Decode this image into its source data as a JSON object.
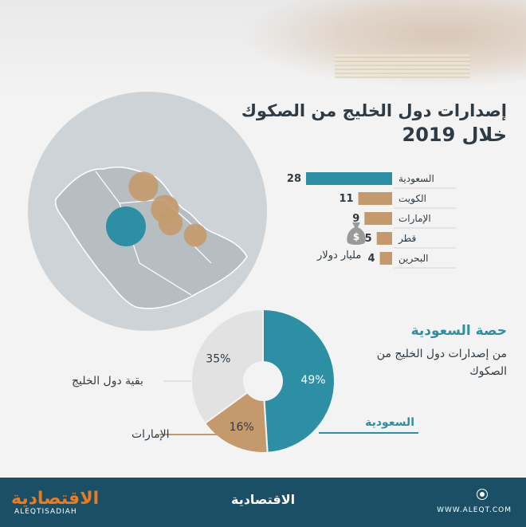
{
  "title_line1": "إصدارات دول الخليج من الصكوك",
  "title_line2": "خلال 2019",
  "unit_label": "مليار دولار",
  "share_title": "حصة السعودية",
  "share_subtitle": "من إصدارات دول الخليج من الصكوك",
  "colors": {
    "teal": "#2c8fa4",
    "tan": "#c49a6c",
    "gray": "#e2e2e2",
    "dark": "#2f3b44"
  },
  "footer": {
    "logo_arabic": "الاقتصادية",
    "logo_latin": "ALEQTISADIAH",
    "center_logo": "الاقتصادية",
    "website": "WWW.ALEQT.COM"
  },
  "chart_data": [
    {
      "type": "bar",
      "orientation": "horizontal",
      "categories": [
        "السعودية",
        "الكويت",
        "الإمارات",
        "قطر",
        "البحرين"
      ],
      "values": [
        28,
        11,
        9,
        5,
        4
      ],
      "ylabel": "مليار دولار"
    },
    {
      "type": "pie",
      "donut": true,
      "labels": [
        "السعودية",
        "الإمارات",
        "بقية دول الخليج"
      ],
      "values": [
        49,
        16,
        35
      ],
      "value_labels": [
        "49%",
        "16%",
        "35%"
      ]
    },
    {
      "type": "bubble-map",
      "region": "Arabian Peninsula",
      "bubbles": [
        {
          "country": "Saudi Arabia",
          "value": 28,
          "color": "teal"
        },
        {
          "country": "Kuwait",
          "value": 11,
          "color": "tan"
        },
        {
          "country": "UAE",
          "value": 9,
          "color": "tan"
        },
        {
          "country": "Qatar",
          "value": 5,
          "color": "tan"
        },
        {
          "country": "Bahrain",
          "value": 4,
          "color": "tan"
        }
      ]
    }
  ]
}
